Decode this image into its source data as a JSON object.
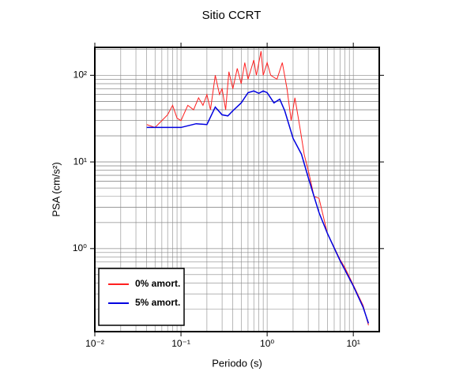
{
  "chart_data": {
    "type": "line",
    "title": "Sitio CCRT",
    "x_label": "Periodo (s)",
    "y_label": "PSA (cm/s²)",
    "log_x": true,
    "log_y": true,
    "grid": true,
    "minor_grid": true,
    "legend": "lower left",
    "xlim": [
      0.01,
      20
    ],
    "ylim": [
      0.11,
      210
    ],
    "xticks": [
      {
        "value": 0.01,
        "label": "10⁻²"
      },
      {
        "value": 0.1,
        "label": "10⁻¹"
      },
      {
        "value": 1,
        "label": "10⁰"
      },
      {
        "value": 10,
        "label": "10¹"
      }
    ],
    "yticks": [
      {
        "value": 1,
        "label": "10⁰"
      },
      {
        "value": 10,
        "label": "10¹"
      },
      {
        "value": 100,
        "label": "10²"
      }
    ],
    "series": [
      {
        "name": "0% amort.",
        "color": "#ff2020",
        "x": [
          0.04,
          0.05,
          0.06,
          0.07,
          0.08,
          0.09,
          0.1,
          0.12,
          0.14,
          0.16,
          0.18,
          0.2,
          0.22,
          0.25,
          0.28,
          0.3,
          0.33,
          0.36,
          0.4,
          0.45,
          0.5,
          0.55,
          0.6,
          0.7,
          0.75,
          0.85,
          0.9,
          1.0,
          1.1,
          1.3,
          1.5,
          1.7,
          1.9,
          2.1,
          2.4,
          2.7,
          3.0,
          3.5,
          4,
          5,
          7,
          8,
          10,
          13,
          15
        ],
        "values": [
          27,
          25,
          30,
          35,
          45,
          32,
          30,
          45,
          40,
          55,
          45,
          60,
          40,
          100,
          60,
          70,
          40,
          110,
          70,
          120,
          80,
          140,
          90,
          150,
          100,
          190,
          100,
          140,
          100,
          90,
          140,
          70,
          30,
          55,
          25,
          12,
          8,
          4,
          3.8,
          1.5,
          0.75,
          0.6,
          0.38,
          0.22,
          0.13
        ]
      },
      {
        "name": "5% amort.",
        "color": "#0000e0",
        "x": [
          0.04,
          0.1,
          0.15,
          0.2,
          0.25,
          0.3,
          0.35,
          0.4,
          0.5,
          0.6,
          0.7,
          0.8,
          0.9,
          1.0,
          1.2,
          1.4,
          1.6,
          2.0,
          2.5,
          3,
          4,
          5,
          7,
          10,
          13,
          15
        ],
        "values": [
          25,
          25,
          27.6,
          27,
          43,
          35,
          34,
          39,
          48,
          63,
          66,
          62,
          66,
          63,
          48,
          53,
          39,
          18.7,
          12.3,
          6.6,
          2.6,
          1.5,
          0.73,
          0.37,
          0.21,
          0.137
        ]
      }
    ]
  }
}
